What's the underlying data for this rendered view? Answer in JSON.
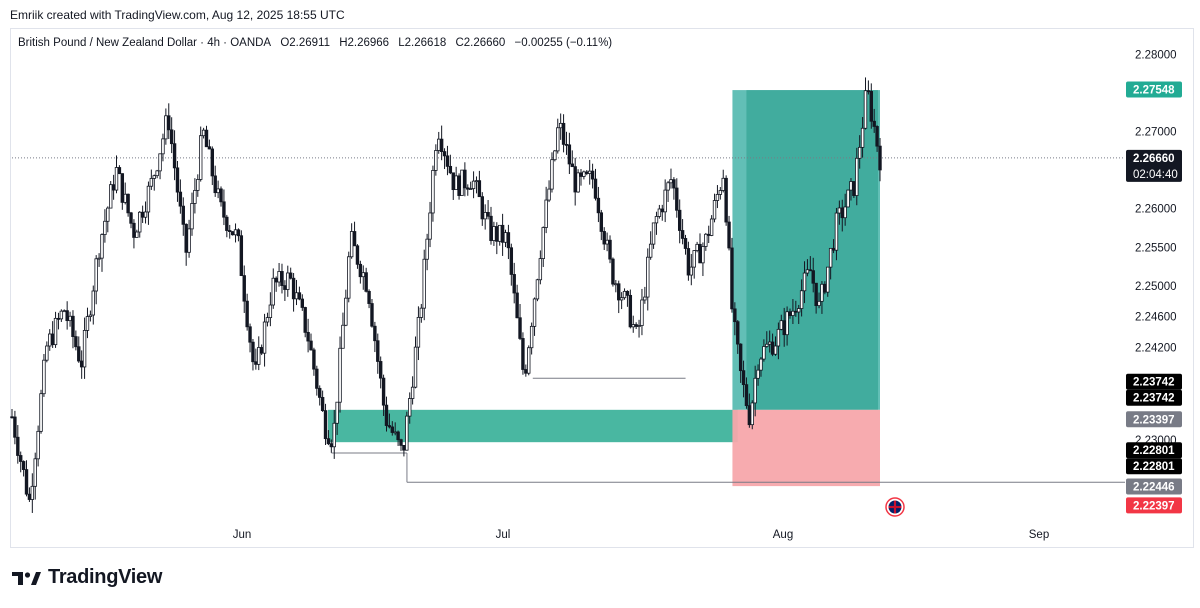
{
  "header": {
    "text": "Emriik created with TradingView.com, Aug 12, 2025 18:55 UTC"
  },
  "symbol": {
    "name": "British Pound / New Zealand Dollar · 4h · OANDA",
    "open": "O2.26911",
    "high": "H2.26966",
    "low": "L2.26618",
    "close": "C2.26660",
    "change": "−0.00255 (−0.11%)"
  },
  "logo": {
    "text": "TradingView"
  },
  "colors": {
    "candle": "#131722",
    "profit_zone": "#26a69a",
    "loss_zone": "#f7a6ab",
    "demand_zone": "#3fb39c",
    "price_line": "#787b86"
  },
  "chart_data": {
    "type": "candlestick",
    "instrument": "GBPNZD",
    "timeframe": "4h",
    "x_ticks": [
      "Jun",
      "Jul",
      "Aug",
      "Sep"
    ],
    "y_ticks": [
      "2.28000",
      "2.27000",
      "2.26000",
      "2.25500",
      "2.25000",
      "2.24600",
      "2.24200",
      "2.23000"
    ],
    "ylim": [
      2.2196,
      2.2832
    ],
    "price_path": [
      {
        "x": 0.0,
        "y": 2.233
      },
      {
        "x": 0.02,
        "y": 2.222
      },
      {
        "x": 0.04,
        "y": 2.242
      },
      {
        "x": 0.06,
        "y": 2.247
      },
      {
        "x": 0.08,
        "y": 2.24
      },
      {
        "x": 0.1,
        "y": 2.255
      },
      {
        "x": 0.12,
        "y": 2.265
      },
      {
        "x": 0.14,
        "y": 2.257
      },
      {
        "x": 0.16,
        "y": 2.263
      },
      {
        "x": 0.18,
        "y": 2.272
      },
      {
        "x": 0.2,
        "y": 2.254
      },
      {
        "x": 0.22,
        "y": 2.27
      },
      {
        "x": 0.24,
        "y": 2.26
      },
      {
        "x": 0.26,
        "y": 2.256
      },
      {
        "x": 0.28,
        "y": 2.238
      },
      {
        "x": 0.3,
        "y": 2.25
      },
      {
        "x": 0.32,
        "y": 2.251
      },
      {
        "x": 0.34,
        "y": 2.244
      },
      {
        "x": 0.36,
        "y": 2.232
      },
      {
        "x": 0.37,
        "y": 2.23
      },
      {
        "x": 0.39,
        "y": 2.256
      },
      {
        "x": 0.41,
        "y": 2.25
      },
      {
        "x": 0.43,
        "y": 2.233
      },
      {
        "x": 0.45,
        "y": 2.228
      },
      {
        "x": 0.47,
        "y": 2.246
      },
      {
        "x": 0.49,
        "y": 2.271
      },
      {
        "x": 0.51,
        "y": 2.263
      },
      {
        "x": 0.53,
        "y": 2.264
      },
      {
        "x": 0.55,
        "y": 2.257
      },
      {
        "x": 0.57,
        "y": 2.256
      },
      {
        "x": 0.59,
        "y": 2.238
      },
      {
        "x": 0.61,
        "y": 2.256
      },
      {
        "x": 0.63,
        "y": 2.271
      },
      {
        "x": 0.65,
        "y": 2.263
      },
      {
        "x": 0.67,
        "y": 2.264
      },
      {
        "x": 0.69,
        "y": 2.252
      },
      {
        "x": 0.71,
        "y": 2.247
      },
      {
        "x": 0.72,
        "y": 2.243
      },
      {
        "x": 0.74,
        "y": 2.258
      },
      {
        "x": 0.76,
        "y": 2.264
      },
      {
        "x": 0.78,
        "y": 2.252
      },
      {
        "x": 0.8,
        "y": 2.256
      },
      {
        "x": 0.82,
        "y": 2.265
      },
      {
        "x": 0.83,
        "y": 2.246
      },
      {
        "x": 0.84,
        "y": 2.238
      },
      {
        "x": 0.85,
        "y": 2.233
      },
      {
        "x": 0.86,
        "y": 2.241
      },
      {
        "x": 0.88,
        "y": 2.243
      },
      {
        "x": 0.9,
        "y": 2.247
      },
      {
        "x": 0.92,
        "y": 2.252
      },
      {
        "x": 0.93,
        "y": 2.247
      },
      {
        "x": 0.95,
        "y": 2.258
      },
      {
        "x": 0.97,
        "y": 2.263
      },
      {
        "x": 0.985,
        "y": 2.2754
      },
      {
        "x": 1.0,
        "y": 2.2666
      }
    ],
    "demand_zone": {
      "x_start": 0.364,
      "x_end": 0.836,
      "y_low": 2.2297,
      "y_high": 2.2339
    },
    "position": {
      "x_start": 0.83,
      "x_end": 1.0,
      "entry": 2.2339,
      "target": 2.2754,
      "stop": 2.224
    },
    "horizontal_levels": [
      {
        "y": 2.238,
        "x_start": 0.6,
        "x_end": 0.776
      },
      {
        "y": 2.2283,
        "x_start": 0.368,
        "x_end": 0.455
      },
      {
        "y": 2.2245,
        "x_start": 0.455,
        "x_end": 1.0
      }
    ],
    "price_badges": [
      {
        "label": "2.27548",
        "value": 2.27548,
        "bg": "#22ab94",
        "fg": "#ffffff"
      },
      {
        "label": "2.26660",
        "value": 2.2666,
        "bg": "#131722",
        "fg": "#ffffff",
        "sub": "02:04:40"
      },
      {
        "label": "2.23742",
        "value": 2.23742,
        "bg": "#000000",
        "fg": "#ffffff"
      },
      {
        "label": "2.23742",
        "value": 2.23742,
        "bg": "#000000",
        "fg": "#ffffff",
        "offset": 1
      },
      {
        "label": "2.23397",
        "value": 2.23397,
        "bg": "#787b86",
        "fg": "#ffffff"
      },
      {
        "label": "2.22801",
        "value": 2.22801,
        "bg": "#000000",
        "fg": "#ffffff"
      },
      {
        "label": "2.22801",
        "value": 2.22801,
        "bg": "#000000",
        "fg": "#ffffff",
        "offset": 1
      },
      {
        "label": "2.22446",
        "value": 2.22446,
        "bg": "#787b86",
        "fg": "#ffffff"
      },
      {
        "label": "2.22397",
        "value": 2.22397,
        "bg": "#f23645",
        "fg": "#ffffff"
      }
    ]
  }
}
